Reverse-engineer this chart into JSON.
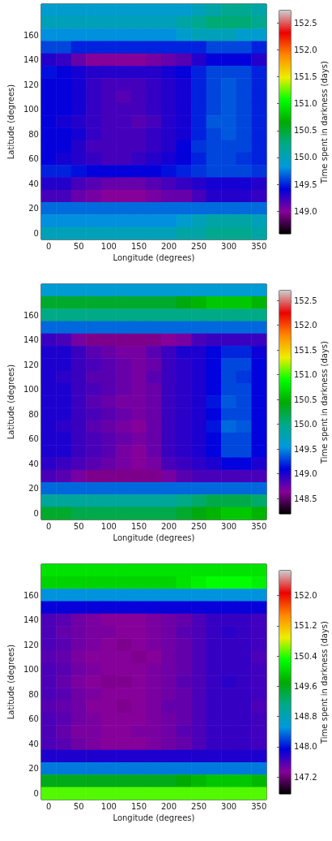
{
  "chart_data": [
    {
      "type": "heatmap",
      "xlabel": "Longitude (degrees)",
      "ylabel": "Latitude (degrees)",
      "clabel": "Time spent in darkness (days)",
      "categories": [
        "0",
        null,
        "50",
        null,
        "100",
        null,
        "150",
        null,
        "200",
        null,
        "250",
        null,
        "300",
        null,
        "350"
      ],
      "y_categories": [
        null,
        null,
        "160",
        null,
        "140",
        null,
        "120",
        null,
        "100",
        null,
        "80",
        null,
        "60",
        null,
        "40",
        null,
        "20",
        null,
        "0"
      ],
      "clim": [
        148.58,
        152.73
      ],
      "cticks": [
        {
          "value": 149,
          "label": "149.0"
        },
        149.5,
        {
          "value": 150,
          "label": "150.0"
        },
        150.5,
        {
          "value": 151,
          "label": "151.0"
        },
        151.5,
        {
          "value": 152,
          "label": "152.0"
        },
        152.5
      ],
      "cells": [
        [
          149.9,
          149.9,
          149.9,
          149.9,
          149.9,
          149.9,
          149.9,
          149.9,
          149.9,
          149.9,
          150.0,
          150.1,
          150.2,
          150.2,
          150.1
        ],
        [
          150.0,
          150.0,
          150.0,
          150.0,
          150.0,
          150.0,
          150.0,
          150.0,
          150.0,
          150.1,
          150.2,
          150.3,
          150.3,
          150.3,
          150.2
        ],
        [
          149.8,
          149.8,
          149.8,
          149.8,
          149.8,
          149.8,
          149.8,
          149.8,
          149.8,
          149.9,
          150.0,
          150.0,
          150.0,
          149.9,
          149.9
        ],
        [
          149.6,
          149.6,
          149.5,
          149.5,
          149.5,
          149.5,
          149.5,
          149.5,
          149.5,
          149.5,
          149.5,
          149.6,
          149.6,
          149.6,
          149.5
        ],
        [
          149.3,
          149.25,
          149.1,
          149.0,
          149.0,
          149.0,
          149.0,
          149.05,
          149.1,
          149.15,
          149.3,
          149.4,
          149.4,
          149.4,
          149.3
        ],
        [
          149.45,
          149.4,
          149.35,
          149.3,
          149.3,
          149.3,
          149.3,
          149.3,
          149.35,
          149.4,
          149.5,
          149.6,
          149.6,
          149.6,
          149.5
        ],
        [
          149.4,
          149.4,
          149.35,
          149.25,
          149.2,
          149.2,
          149.2,
          149.25,
          149.3,
          149.35,
          149.5,
          149.6,
          149.65,
          149.6,
          149.5
        ],
        [
          149.4,
          149.4,
          149.35,
          149.25,
          149.2,
          149.15,
          149.2,
          149.25,
          149.3,
          149.35,
          149.5,
          149.6,
          149.65,
          149.6,
          149.5
        ],
        [
          149.4,
          149.4,
          149.35,
          149.25,
          149.2,
          149.2,
          149.2,
          149.25,
          149.3,
          149.35,
          149.5,
          149.6,
          149.65,
          149.6,
          149.5
        ],
        [
          149.4,
          149.35,
          149.3,
          149.25,
          149.2,
          149.2,
          149.15,
          149.2,
          149.3,
          149.35,
          149.5,
          149.65,
          149.65,
          149.6,
          149.5
        ],
        [
          149.4,
          149.4,
          149.35,
          149.25,
          149.2,
          149.2,
          149.2,
          149.25,
          149.3,
          149.35,
          149.5,
          149.6,
          149.65,
          149.6,
          149.5
        ],
        [
          149.4,
          149.4,
          149.3,
          149.2,
          149.2,
          149.2,
          149.2,
          149.25,
          149.3,
          149.4,
          149.55,
          149.6,
          149.6,
          149.6,
          149.5
        ],
        [
          149.4,
          149.35,
          149.3,
          149.25,
          149.2,
          149.2,
          149.25,
          149.3,
          149.35,
          149.4,
          149.5,
          149.6,
          149.6,
          149.55,
          149.5
        ],
        [
          149.5,
          149.5,
          149.45,
          149.4,
          149.4,
          149.4,
          149.4,
          149.4,
          149.45,
          149.5,
          149.55,
          149.6,
          149.6,
          149.6,
          149.55
        ],
        [
          149.3,
          149.3,
          149.2,
          149.15,
          149.1,
          149.1,
          149.1,
          149.15,
          149.2,
          149.25,
          149.3,
          149.35,
          149.35,
          149.35,
          149.3
        ],
        [
          149.2,
          149.2,
          149.1,
          149.05,
          149.0,
          149.0,
          149.0,
          149.05,
          149.1,
          149.1,
          149.2,
          149.3,
          149.3,
          149.3,
          149.25
        ],
        [
          149.7,
          149.7,
          149.7,
          149.7,
          149.7,
          149.7,
          149.7,
          149.7,
          149.7,
          149.7,
          149.7,
          149.7,
          149.7,
          149.7,
          149.7
        ],
        [
          149.8,
          149.8,
          149.8,
          149.8,
          149.8,
          149.8,
          149.8,
          149.8,
          149.8,
          149.9,
          150.0,
          150.1,
          150.1,
          150.1,
          150.0
        ],
        [
          150.0,
          150.0,
          150.0,
          150.0,
          150.0,
          150.0,
          150.0,
          150.0,
          150.0,
          150.1,
          150.1,
          150.2,
          150.2,
          150.2,
          150.1
        ]
      ]
    },
    {
      "type": "heatmap",
      "xlabel": "Longitude (degrees)",
      "ylabel": "Latitude (degrees)",
      "clabel": "Time spent in darkness (days)",
      "categories": [
        "0",
        null,
        "50",
        null,
        "100",
        null,
        "150",
        null,
        "200",
        null,
        "250",
        null,
        "300",
        null,
        "350"
      ],
      "y_categories": [
        null,
        null,
        "160",
        null,
        "140",
        null,
        "120",
        null,
        "100",
        null,
        "80",
        null,
        "60",
        null,
        "40",
        null,
        "20",
        null,
        "0"
      ],
      "clim": [
        148.19,
        152.7
      ],
      "cticks": [
        148.5,
        {
          "value": 149,
          "label": "149.0"
        },
        149.5,
        {
          "value": 150,
          "label": "150.0"
        },
        150.5,
        {
          "value": 151,
          "label": "151.0"
        },
        151.5,
        {
          "value": 152,
          "label": "152.0"
        },
        152.5
      ],
      "cells": [
        [
          149.6,
          149.6,
          149.6,
          149.6,
          149.6,
          149.6,
          149.6,
          149.6,
          149.6,
          149.6,
          149.6,
          149.6,
          149.6,
          149.6,
          149.6
        ],
        [
          150.3,
          150.3,
          150.3,
          150.3,
          150.3,
          150.3,
          150.3,
          150.3,
          150.3,
          150.4,
          150.5,
          150.6,
          150.6,
          150.6,
          150.5
        ],
        [
          150.0,
          150.0,
          150.0,
          150.0,
          150.0,
          150.0,
          150.0,
          150.0,
          150.0,
          150.0,
          150.0,
          150.0,
          150.0,
          150.0,
          150.0
        ],
        [
          149.4,
          149.4,
          149.4,
          149.4,
          149.4,
          149.4,
          149.4,
          149.4,
          149.4,
          149.4,
          149.4,
          149.4,
          149.4,
          149.4,
          149.4
        ],
        [
          148.9,
          148.85,
          148.7,
          148.6,
          148.6,
          148.6,
          148.6,
          148.6,
          148.65,
          148.7,
          148.85,
          148.9,
          148.9,
          148.9,
          148.9
        ],
        [
          149.0,
          149.0,
          148.9,
          148.8,
          148.75,
          148.7,
          148.7,
          148.8,
          148.9,
          149.0,
          149.0,
          149.1,
          149.2,
          149.2,
          149.05
        ],
        [
          149.0,
          149.0,
          148.9,
          148.85,
          148.8,
          148.75,
          148.7,
          148.75,
          148.9,
          148.95,
          149.0,
          149.1,
          149.3,
          149.3,
          149.1
        ],
        [
          149.0,
          148.95,
          148.9,
          148.8,
          148.8,
          148.75,
          148.7,
          148.8,
          148.9,
          148.95,
          149.0,
          149.1,
          149.3,
          149.25,
          149.1
        ],
        [
          149.0,
          149.0,
          148.9,
          148.85,
          148.8,
          148.75,
          148.7,
          148.75,
          148.9,
          148.95,
          149.0,
          149.1,
          149.3,
          149.3,
          149.1
        ],
        [
          149.0,
          149.0,
          148.9,
          148.8,
          148.75,
          148.7,
          148.7,
          148.75,
          148.9,
          148.95,
          149.0,
          149.15,
          149.35,
          149.3,
          149.1
        ],
        [
          149.0,
          149.0,
          148.9,
          148.85,
          148.8,
          148.75,
          148.7,
          148.75,
          148.9,
          148.95,
          149.0,
          149.1,
          149.3,
          149.3,
          149.1
        ],
        [
          149.0,
          148.95,
          148.9,
          148.8,
          148.75,
          148.7,
          148.65,
          148.75,
          148.9,
          148.95,
          149.0,
          149.15,
          149.4,
          149.35,
          149.1
        ],
        [
          149.0,
          149.0,
          148.9,
          148.85,
          148.8,
          148.75,
          148.7,
          148.75,
          148.9,
          148.95,
          149.0,
          149.1,
          149.3,
          149.3,
          149.1
        ],
        [
          149.0,
          149.0,
          148.9,
          148.85,
          148.8,
          148.7,
          148.65,
          148.75,
          148.9,
          148.95,
          149.0,
          149.1,
          149.3,
          149.3,
          149.1
        ],
        [
          148.95,
          148.9,
          148.85,
          148.8,
          148.75,
          148.7,
          148.65,
          148.7,
          148.85,
          148.9,
          148.95,
          149.0,
          149.1,
          149.1,
          149.0
        ],
        [
          148.85,
          148.8,
          148.7,
          148.6,
          148.6,
          148.6,
          148.6,
          148.6,
          148.7,
          148.8,
          148.85,
          148.85,
          148.85,
          148.85,
          148.85
        ],
        [
          149.4,
          149.4,
          149.4,
          149.4,
          149.4,
          149.4,
          149.4,
          149.4,
          149.4,
          149.4,
          149.4,
          149.4,
          149.4,
          149.4,
          149.4
        ],
        [
          149.9,
          149.9,
          149.9,
          149.9,
          149.9,
          149.9,
          149.9,
          149.9,
          149.9,
          150.0,
          150.1,
          150.2,
          150.2,
          150.2,
          150.1
        ],
        [
          150.3,
          150.3,
          150.2,
          150.2,
          150.2,
          150.2,
          150.2,
          150.2,
          150.2,
          150.3,
          150.4,
          150.5,
          150.6,
          150.6,
          150.5
        ]
      ]
    },
    {
      "type": "heatmap",
      "xlabel": "Longitude (degrees)",
      "ylabel": "Latitude (degrees)",
      "clabel": "Time spent in darkness (days)",
      "categories": [
        "0",
        null,
        "50",
        null,
        "100",
        null,
        "150",
        null,
        "200",
        null,
        "250",
        null,
        "300",
        null,
        "350"
      ],
      "y_categories": [
        null,
        null,
        "160",
        null,
        "140",
        null,
        "120",
        null,
        "100",
        null,
        "80",
        null,
        "60",
        null,
        "40",
        null,
        "20",
        null,
        "0"
      ],
      "clim": [
        146.75,
        152.66
      ],
      "cticks": [
        147.2,
        {
          "value": 148,
          "label": "148.0"
        },
        148.8,
        149.6,
        150.4,
        151.2,
        {
          "value": 152,
          "label": "152.0"
        }
      ],
      "cells": [
        [
          150.1,
          150.1,
          150.1,
          150.1,
          150.1,
          150.1,
          150.1,
          150.1,
          150.1,
          150.1,
          150.1,
          150.1,
          150.1,
          150.1,
          150.1
        ],
        [
          150.0,
          150.0,
          150.0,
          150.0,
          150.0,
          150.0,
          150.0,
          150.0,
          150.0,
          150.1,
          150.2,
          150.3,
          150.3,
          150.3,
          150.2
        ],
        [
          148.5,
          148.5,
          148.5,
          148.5,
          148.5,
          148.5,
          148.5,
          148.5,
          148.5,
          148.5,
          148.5,
          148.5,
          148.5,
          148.5,
          148.5
        ],
        [
          147.9,
          147.9,
          147.9,
          147.9,
          147.9,
          147.9,
          147.9,
          147.9,
          147.9,
          147.9,
          147.9,
          147.9,
          147.9,
          147.9,
          147.9
        ],
        [
          147.6,
          147.55,
          147.45,
          147.4,
          147.35,
          147.35,
          147.35,
          147.4,
          147.45,
          147.5,
          147.6,
          147.7,
          147.7,
          147.7,
          147.65
        ],
        [
          147.6,
          147.5,
          147.45,
          147.4,
          147.4,
          147.35,
          147.35,
          147.4,
          147.45,
          147.55,
          147.6,
          147.7,
          147.75,
          147.7,
          147.65
        ],
        [
          147.6,
          147.55,
          147.45,
          147.4,
          147.35,
          147.3,
          147.35,
          147.4,
          147.45,
          147.5,
          147.6,
          147.7,
          147.7,
          147.7,
          147.65
        ],
        [
          147.55,
          147.5,
          147.4,
          147.35,
          147.35,
          147.35,
          147.3,
          147.35,
          147.45,
          147.5,
          147.6,
          147.7,
          147.7,
          147.7,
          147.6
        ],
        [
          147.6,
          147.55,
          147.45,
          147.4,
          147.35,
          147.35,
          147.35,
          147.4,
          147.45,
          147.5,
          147.6,
          147.7,
          147.7,
          147.7,
          147.65
        ],
        [
          147.6,
          147.5,
          147.4,
          147.35,
          147.3,
          147.3,
          147.35,
          147.4,
          147.45,
          147.55,
          147.6,
          147.7,
          147.75,
          147.7,
          147.65
        ],
        [
          147.6,
          147.55,
          147.45,
          147.4,
          147.35,
          147.35,
          147.35,
          147.4,
          147.45,
          147.5,
          147.6,
          147.7,
          147.7,
          147.7,
          147.65
        ],
        [
          147.55,
          147.5,
          147.45,
          147.35,
          147.35,
          147.3,
          147.35,
          147.4,
          147.5,
          147.5,
          147.6,
          147.7,
          147.7,
          147.7,
          147.6
        ],
        [
          147.6,
          147.55,
          147.45,
          147.4,
          147.35,
          147.35,
          147.35,
          147.4,
          147.45,
          147.5,
          147.6,
          147.7,
          147.7,
          147.7,
          147.65
        ],
        [
          147.6,
          147.5,
          147.4,
          147.4,
          147.35,
          147.35,
          147.4,
          147.4,
          147.45,
          147.55,
          147.6,
          147.7,
          147.7,
          147.7,
          147.65
        ],
        [
          147.6,
          147.55,
          147.45,
          147.4,
          147.35,
          147.35,
          147.35,
          147.4,
          147.45,
          147.5,
          147.6,
          147.7,
          147.7,
          147.7,
          147.65
        ],
        [
          147.8,
          147.8,
          147.8,
          147.8,
          147.8,
          147.8,
          147.8,
          147.8,
          147.8,
          147.8,
          147.8,
          147.8,
          147.8,
          147.8,
          147.8
        ],
        [
          148.4,
          148.4,
          148.4,
          148.4,
          148.4,
          148.4,
          148.4,
          148.4,
          148.4,
          148.4,
          148.4,
          148.4,
          148.4,
          148.4,
          148.4
        ],
        [
          149.6,
          149.6,
          149.6,
          149.6,
          149.6,
          149.6,
          149.6,
          149.6,
          149.6,
          149.7,
          149.8,
          149.9,
          149.9,
          149.9,
          149.8
        ],
        [
          150.5,
          150.5,
          150.5,
          150.5,
          150.5,
          150.5,
          150.5,
          150.5,
          150.5,
          150.5,
          150.5,
          150.5,
          150.5,
          150.5,
          150.5
        ]
      ]
    }
  ]
}
